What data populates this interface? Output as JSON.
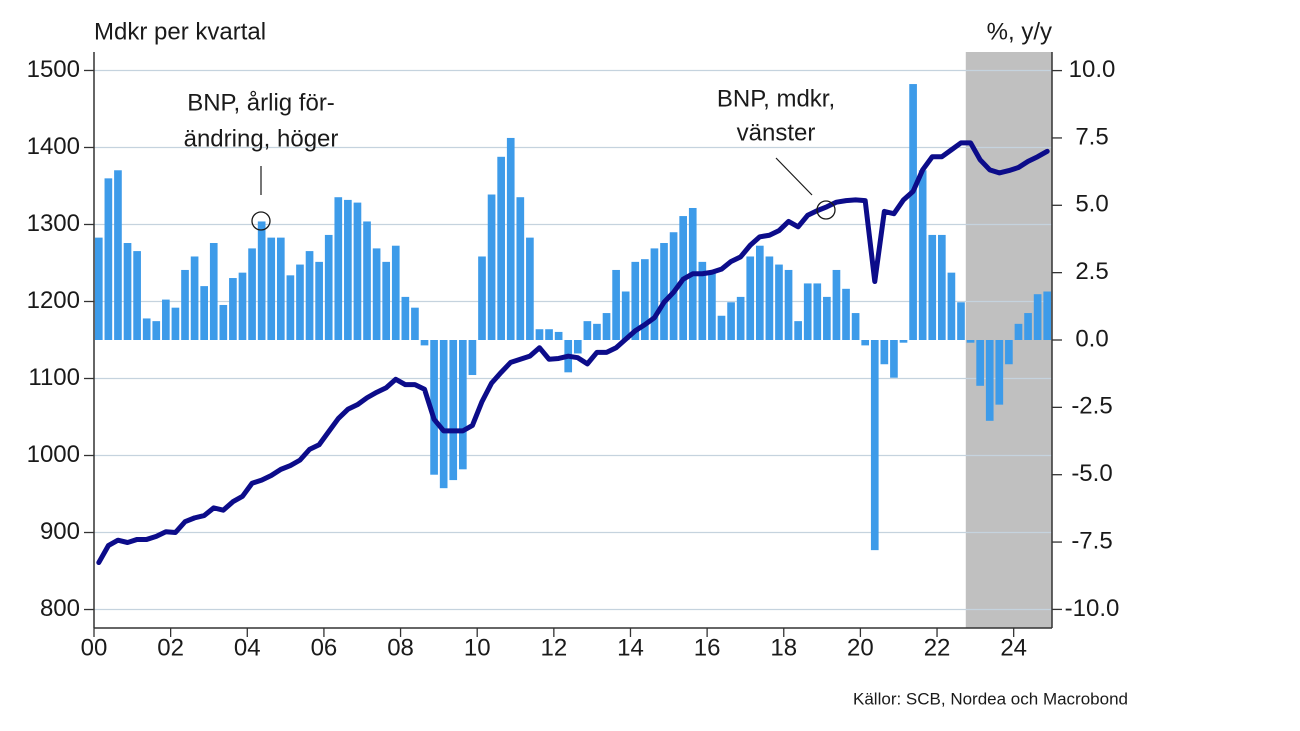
{
  "chart_data": {
    "type": "combo",
    "y_axis_label": "Mdkr per kvartal",
    "y2_axis_label": "%, y/y",
    "annotations": [
      {
        "lines": [
          "BNP, årlig för-",
          "ändring, höger"
        ]
      },
      {
        "lines": [
          "BNP, mdkr,",
          "vänster"
        ]
      }
    ],
    "source": "Källor: SCB, Nordea och Macrobond",
    "x": [
      2000.125,
      2000.375,
      2000.625,
      2000.875,
      2001.125,
      2001.375,
      2001.625,
      2001.875,
      2002.125,
      2002.375,
      2002.625,
      2002.875,
      2003.125,
      2003.375,
      2003.625,
      2003.875,
      2004.125,
      2004.375,
      2004.625,
      2004.875,
      2005.125,
      2005.375,
      2005.625,
      2005.875,
      2006.125,
      2006.375,
      2006.625,
      2006.875,
      2007.125,
      2007.375,
      2007.625,
      2007.875,
      2008.125,
      2008.375,
      2008.625,
      2008.875,
      2009.125,
      2009.375,
      2009.625,
      2009.875,
      2010.125,
      2010.375,
      2010.625,
      2010.875,
      2011.125,
      2011.375,
      2011.625,
      2011.875,
      2012.125,
      2012.375,
      2012.625,
      2012.875,
      2013.125,
      2013.375,
      2013.625,
      2013.875,
      2014.125,
      2014.375,
      2014.625,
      2014.875,
      2015.125,
      2015.375,
      2015.625,
      2015.875,
      2016.125,
      2016.375,
      2016.625,
      2016.875,
      2017.125,
      2017.375,
      2017.625,
      2017.875,
      2018.125,
      2018.375,
      2018.625,
      2018.875,
      2019.125,
      2019.375,
      2019.625,
      2019.875,
      2020.125,
      2020.375,
      2020.625,
      2020.875,
      2021.125,
      2021.375,
      2021.625,
      2021.875,
      2022.125,
      2022.375,
      2022.625,
      2022.875,
      2023.125,
      2023.375,
      2023.625,
      2023.875,
      2024.125,
      2024.375,
      2024.625,
      2024.875
    ],
    "series": [
      {
        "type": "bar",
        "axis": "y2",
        "color": "#3d9be9",
        "values": [
          3.8,
          6.0,
          6.3,
          3.6,
          3.3,
          0.8,
          0.7,
          1.5,
          1.2,
          2.6,
          3.1,
          2.0,
          3.6,
          1.3,
          2.3,
          2.5,
          3.4,
          4.4,
          3.8,
          3.8,
          2.4,
          2.8,
          3.3,
          2.9,
          3.9,
          5.3,
          5.2,
          5.1,
          4.4,
          3.4,
          2.9,
          3.5,
          1.6,
          1.2,
          -0.2,
          -5.0,
          -5.5,
          -5.2,
          -4.8,
          -1.3,
          3.1,
          5.4,
          6.8,
          7.5,
          5.3,
          3.8,
          0.4,
          0.4,
          0.3,
          -1.2,
          -0.5,
          0.7,
          0.6,
          1.0,
          2.6,
          1.8,
          2.9,
          3.0,
          3.4,
          3.6,
          4.0,
          4.6,
          4.9,
          2.9,
          2.5,
          0.9,
          1.4,
          1.6,
          3.1,
          3.5,
          3.1,
          2.8,
          2.6,
          0.7,
          2.1,
          2.1,
          1.6,
          2.6,
          1.9,
          1.0,
          -0.2,
          -7.8,
          -0.9,
          -1.4,
          -0.1,
          9.5,
          6.3,
          3.9,
          3.9,
          2.5,
          1.4,
          -0.1,
          -1.7,
          -3.0,
          -2.4,
          -0.9,
          0.6,
          1.0,
          1.7,
          1.8
        ]
      },
      {
        "type": "line",
        "axis": "y",
        "color": "#0c0c8a",
        "values": [
          861,
          883,
          890,
          887,
          891,
          891,
          895,
          901,
          900,
          914,
          919,
          922,
          932,
          929,
          940,
          947,
          964,
          968,
          974,
          982,
          987,
          994,
          1008,
          1014,
          1031,
          1048,
          1060,
          1066,
          1075,
          1082,
          1088,
          1099,
          1092,
          1092,
          1086,
          1047,
          1032,
          1032,
          1032,
          1039,
          1070,
          1094,
          1108,
          1121,
          1125,
          1129,
          1140,
          1125,
          1126,
          1129,
          1127,
          1119,
          1134,
          1134,
          1140,
          1151,
          1162,
          1170,
          1179,
          1199,
          1212,
          1229,
          1236,
          1236,
          1238,
          1242,
          1252,
          1258,
          1273,
          1284,
          1286,
          1292,
          1304,
          1297,
          1312,
          1318,
          1323,
          1329,
          1331,
          1332,
          1331,
          1226,
          1317,
          1314,
          1332,
          1343,
          1371,
          1388,
          1388,
          1397,
          1406,
          1406,
          1384,
          1371,
          1367,
          1370,
          1374,
          1382,
          1388,
          1395
        ]
      }
    ],
    "shaded_x": [
      2022.75,
      2025
    ],
    "shade_color": "#c0c0c0",
    "xlim": [
      2000,
      2025
    ],
    "xticks": [
      {
        "value": 2000,
        "label": "00"
      },
      {
        "value": 2002,
        "label": "02"
      },
      {
        "value": 2004,
        "label": "04"
      },
      {
        "value": 2006,
        "label": "06"
      },
      {
        "value": 2008,
        "label": "08"
      },
      {
        "value": 2010,
        "label": "10"
      },
      {
        "value": 2012,
        "label": "12"
      },
      {
        "value": 2014,
        "label": "14"
      },
      {
        "value": 2016,
        "label": "16"
      },
      {
        "value": 2018,
        "label": "18"
      },
      {
        "value": 2020,
        "label": "20"
      },
      {
        "value": 2022,
        "label": "22"
      },
      {
        "value": 2024,
        "label": "24"
      }
    ],
    "ylim": [
      776,
      1524
    ],
    "yticks": [
      800,
      900,
      1000,
      1100,
      1200,
      1300,
      1400,
      1500
    ],
    "y2lim": [
      -10.69,
      10.69
    ],
    "y2ticks": [
      {
        "value": -10,
        "label": "-10.0"
      },
      -7.5,
      {
        "value": -5,
        "label": "-5.0"
      },
      -2.5,
      {
        "value": 0,
        "label": "0.0"
      },
      2.5,
      {
        "value": 5,
        "label": "5.0"
      },
      7.5,
      {
        "value": 10,
        "label": "10.0"
      }
    ],
    "grid": true
  }
}
